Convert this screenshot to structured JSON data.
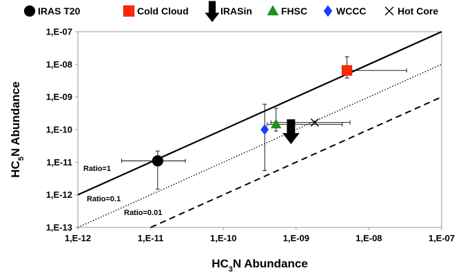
{
  "chart_data": {
    "type": "scatter",
    "xlabel": "HC3N Abundance",
    "ylabel": "HC5N Abundance",
    "xscale": "log",
    "yscale": "log",
    "xlim": [
      1e-12,
      1e-07
    ],
    "ylim": [
      1e-13,
      1e-07
    ],
    "x_ticks": [
      "1,E-12",
      "1,E-11",
      "1,E-10",
      "1,E-09",
      "1,E-08",
      "1,E-07"
    ],
    "y_ticks": [
      "1,E-13",
      "1,E-12",
      "1,E-11",
      "1,E-10",
      "1,E-09",
      "1,E-08",
      "1,E-07"
    ],
    "grid": false,
    "legend_position": "top",
    "series": [
      {
        "name": "IRAS T20",
        "marker": "circle",
        "color": "#000000",
        "points": [
          {
            "x": 1.25e-11,
            "y": 1.1e-11,
            "xerr": [
              4e-12,
              3e-11
            ],
            "yerr": [
              1.5e-12,
              2.2e-11
            ]
          }
        ]
      },
      {
        "name": "Cold Cloud",
        "marker": "square",
        "color": "#ff2a00",
        "points": [
          {
            "x": 5e-09,
            "y": 6.5e-09,
            "xerr": [
              5e-09,
              3.3e-08
            ],
            "yerr": [
              3.8e-09,
              1.7e-08
            ]
          }
        ]
      },
      {
        "name": "IRASin",
        "marker": "down-arrow",
        "color": "#000000",
        "points": [
          {
            "x": 8.5e-10,
            "y": 9e-11,
            "upper_limit": true
          }
        ]
      },
      {
        "name": "FHSC",
        "marker": "triangle",
        "color": "#1f8f1f",
        "points": [
          {
            "x": 5.3e-10,
            "y": 1.45e-10,
            "xerr": [
              4e-10,
              4.3e-09
            ],
            "yerr": [
              9e-11,
              4.5e-10
            ]
          }
        ]
      },
      {
        "name": "WCCC",
        "marker": "diamond",
        "color": "#1a3cff",
        "points": [
          {
            "x": 3.7e-10,
            "y": 1e-10,
            "yerr": [
              5.5e-12,
              6e-10
            ]
          }
        ]
      },
      {
        "name": "Hot Core",
        "marker": "x",
        "color": "#000000",
        "points": [
          {
            "x": 1.8e-09,
            "y": 1.65e-10,
            "xerr": [
              4.5e-10,
              5.5e-09
            ]
          }
        ]
      }
    ],
    "ratio_lines": [
      {
        "label": "Ratio=1",
        "ratio": 1,
        "style": "solid"
      },
      {
        "label": "Ratio=0.1",
        "ratio": 0.1,
        "style": "dotted"
      },
      {
        "label": "Ratio=0.01",
        "ratio": 0.01,
        "style": "dashed"
      }
    ]
  }
}
